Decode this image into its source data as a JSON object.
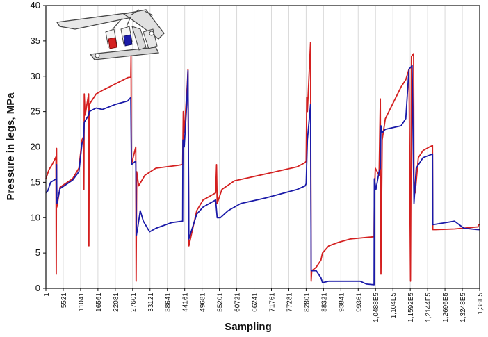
{
  "chart_data": {
    "type": "line",
    "title": "",
    "xlabel": "Sampling",
    "ylabel": "Pressure in legs,  MPa",
    "ylim": [
      0,
      40
    ],
    "yticks": [
      "0",
      "5",
      "10",
      "15",
      "20",
      "25",
      "30",
      "35",
      "40"
    ],
    "xticks": [
      "1",
      "5521",
      "11041",
      "16561",
      "22081",
      "27601",
      "33121",
      "38641",
      "44161",
      "49681",
      "55201",
      "60721",
      "66241",
      "71761",
      "77281",
      "82801",
      "88321",
      "93841",
      "99361",
      "1,0488E5",
      "1,104E5",
      "1,1592E5",
      "1,2144E5",
      "1,2696E5",
      "1,3248E5",
      "1,38E5"
    ],
    "grid": "vertical",
    "legend": "none",
    "inset": "hydraulic-shield-support-icon",
    "series": [
      {
        "color": "#d42020",
        "points": [
          [
            0,
            15.5
          ],
          [
            1000,
            16.8
          ],
          [
            2000,
            17.5
          ],
          [
            3200,
            18.6
          ],
          [
            3300,
            2
          ],
          [
            3400,
            19.8
          ],
          [
            3500,
            11.5
          ],
          [
            4500,
            14.3
          ],
          [
            8500,
            15.5
          ],
          [
            10500,
            17
          ],
          [
            11500,
            21
          ],
          [
            12000,
            21.5
          ],
          [
            12100,
            14
          ],
          [
            12200,
            27.5
          ],
          [
            12500,
            24.5
          ],
          [
            13600,
            27.5
          ],
          [
            13700,
            6
          ],
          [
            13800,
            26
          ],
          [
            16000,
            27.5
          ],
          [
            18000,
            28
          ],
          [
            26000,
            29.8
          ],
          [
            27000,
            29.9
          ],
          [
            27100,
            33
          ],
          [
            27200,
            17.5
          ],
          [
            28600,
            20
          ],
          [
            28700,
            1
          ],
          [
            28900,
            16.5
          ],
          [
            29500,
            14.5
          ],
          [
            31500,
            16
          ],
          [
            35000,
            17
          ],
          [
            42000,
            17.4
          ],
          [
            43500,
            17.5
          ],
          [
            43700,
            25
          ],
          [
            44000,
            22
          ],
          [
            45000,
            29
          ],
          [
            45200,
            31
          ],
          [
            45500,
            6
          ],
          [
            48000,
            11
          ],
          [
            50000,
            12.5
          ],
          [
            54000,
            13.5
          ],
          [
            54300,
            17.5
          ],
          [
            54500,
            12
          ],
          [
            56000,
            14
          ],
          [
            60000,
            15.2
          ],
          [
            70000,
            16.2
          ],
          [
            80000,
            17.2
          ],
          [
            82500,
            17.8
          ],
          [
            82800,
            18
          ],
          [
            83000,
            27
          ],
          [
            83200,
            25
          ],
          [
            84200,
            34.8
          ],
          [
            84400,
            1
          ],
          [
            84600,
            2.5
          ],
          [
            86000,
            3
          ],
          [
            87500,
            4
          ],
          [
            88000,
            5
          ],
          [
            90000,
            6
          ],
          [
            93000,
            6.5
          ],
          [
            97000,
            7
          ],
          [
            102000,
            7.2
          ],
          [
            104400,
            7.3
          ],
          [
            104500,
            13
          ],
          [
            104800,
            17
          ],
          [
            106000,
            16
          ],
          [
            106400,
            26.8
          ],
          [
            106600,
            2
          ],
          [
            107000,
            21
          ],
          [
            108000,
            24
          ],
          [
            113000,
            28.5
          ],
          [
            114500,
            29.5
          ],
          [
            115500,
            31
          ],
          [
            116000,
            1
          ],
          [
            116300,
            32.8
          ],
          [
            117000,
            33.2
          ],
          [
            117100,
            15
          ],
          [
            117500,
            13.5
          ],
          [
            118500,
            18.5
          ],
          [
            120000,
            19.5
          ],
          [
            122000,
            20
          ],
          [
            123000,
            20.2
          ],
          [
            123100,
            8.3
          ],
          [
            124000,
            8.3
          ],
          [
            130000,
            8.4
          ],
          [
            135000,
            8.6
          ],
          [
            137500,
            8.7
          ],
          [
            137600,
            9
          ],
          [
            138000,
            9
          ]
        ]
      },
      {
        "color": "#1a1aa8",
        "points": [
          [
            0,
            13.5
          ],
          [
            600,
            13.8
          ],
          [
            1500,
            15
          ],
          [
            3300,
            15.5
          ],
          [
            3400,
            17.5
          ],
          [
            3500,
            12
          ],
          [
            4500,
            14.1
          ],
          [
            8500,
            15.3
          ],
          [
            10500,
            16.5
          ],
          [
            11500,
            20.5
          ],
          [
            12000,
            21
          ],
          [
            12200,
            23.5
          ],
          [
            13600,
            24.5
          ],
          [
            13800,
            25
          ],
          [
            16000,
            25.5
          ],
          [
            18000,
            25.3
          ],
          [
            22000,
            26
          ],
          [
            26000,
            26.5
          ],
          [
            27000,
            27
          ],
          [
            27200,
            17.5
          ],
          [
            28600,
            18
          ],
          [
            28800,
            7.5
          ],
          [
            29200,
            8.5
          ],
          [
            30000,
            11
          ],
          [
            31000,
            9.5
          ],
          [
            33000,
            8
          ],
          [
            35000,
            8.5
          ],
          [
            40000,
            9.3
          ],
          [
            43500,
            9.5
          ],
          [
            43600,
            21
          ],
          [
            44000,
            20
          ],
          [
            44800,
            26
          ],
          [
            45200,
            30.8
          ],
          [
            45500,
            7
          ],
          [
            48000,
            10.5
          ],
          [
            50000,
            11.5
          ],
          [
            54000,
            12.5
          ],
          [
            54500,
            10
          ],
          [
            55500,
            10
          ],
          [
            58000,
            11
          ],
          [
            62000,
            12
          ],
          [
            70000,
            12.8
          ],
          [
            80000,
            14
          ],
          [
            82500,
            14.5
          ],
          [
            82800,
            14.8
          ],
          [
            83200,
            21
          ],
          [
            84200,
            26
          ],
          [
            84400,
            2.5
          ],
          [
            86000,
            2.5
          ],
          [
            87500,
            1.5
          ],
          [
            88000,
            0.8
          ],
          [
            90000,
            1
          ],
          [
            94000,
            1
          ],
          [
            97000,
            1
          ],
          [
            99000,
            1
          ],
          [
            100000,
            1
          ],
          [
            102000,
            0.6
          ],
          [
            104400,
            0.5
          ],
          [
            104500,
            15.5
          ],
          [
            105000,
            14
          ],
          [
            106000,
            16.5
          ],
          [
            106400,
            17
          ],
          [
            106600,
            23
          ],
          [
            107000,
            22
          ],
          [
            108000,
            22.5
          ],
          [
            113000,
            23
          ],
          [
            114500,
            24
          ],
          [
            115500,
            31
          ],
          [
            116500,
            31.5
          ],
          [
            117100,
            12
          ],
          [
            117800,
            17
          ],
          [
            120000,
            18.5
          ],
          [
            123000,
            19
          ],
          [
            123100,
            9
          ],
          [
            130000,
            9.5
          ],
          [
            133000,
            8.5
          ],
          [
            137500,
            8.3
          ],
          [
            138000,
            8.3
          ]
        ]
      }
    ]
  }
}
